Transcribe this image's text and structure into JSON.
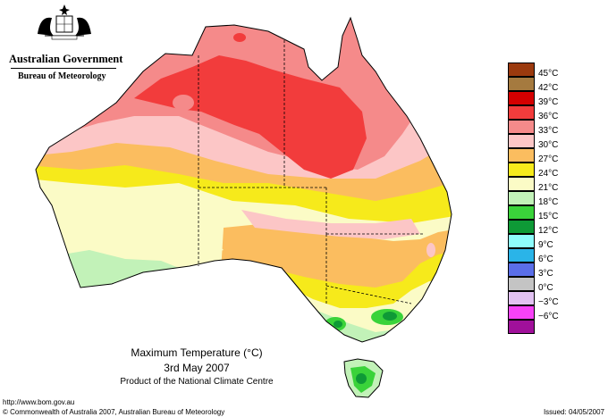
{
  "header": {
    "government": "Australian Government",
    "bureau": "Bureau of Meteorology"
  },
  "caption": {
    "title": "Maximum Temperature (°C)",
    "date": "3rd May 2007",
    "product": "Product of the National Climate Centre"
  },
  "footer": {
    "url": "http://www.bom.gov.au",
    "copyright": "© Commonwealth of Australia 2007, Australian Bureau of Meteorology",
    "issued": "Issued: 04/05/2007"
  },
  "legend": [
    {
      "label": "45°C",
      "color": "#9b3a0e"
    },
    {
      "label": "42°C",
      "color": "#a57a3f"
    },
    {
      "label": "39°C",
      "color": "#d40000"
    },
    {
      "label": "36°C",
      "color": "#f23c3c"
    },
    {
      "label": "33°C",
      "color": "#f58a8a"
    },
    {
      "label": "30°C",
      "color": "#fcc6c6"
    },
    {
      "label": "27°C",
      "color": "#fbbd5f"
    },
    {
      "label": "24°C",
      "color": "#f6ea1b"
    },
    {
      "label": "21°C",
      "color": "#fbfbc6"
    },
    {
      "label": "18°C",
      "color": "#c2f2b8"
    },
    {
      "label": "15°C",
      "color": "#3ad33a"
    },
    {
      "label": "12°C",
      "color": "#0e9a36"
    },
    {
      "label": "9°C",
      "color": "#8efcfc"
    },
    {
      "label": "6°C",
      "color": "#2ab4e8"
    },
    {
      "label": "3°C",
      "color": "#5a6ee8"
    },
    {
      "label": "0°C",
      "color": "#c4c4c4"
    },
    {
      "label": "−3°C",
      "color": "#e2c2f2"
    },
    {
      "label": "−6°C",
      "color": "#f742f7"
    },
    {
      "label": "",
      "color": "#a0109a"
    }
  ]
}
